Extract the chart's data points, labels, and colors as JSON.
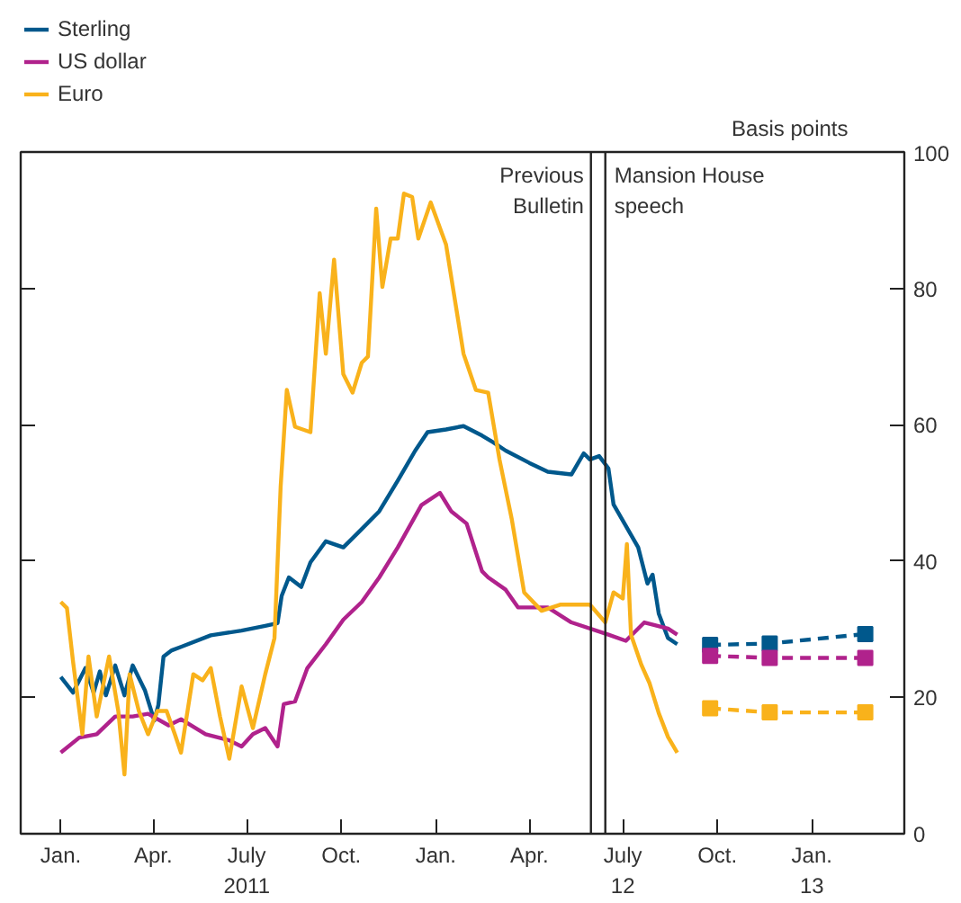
{
  "chart_data": {
    "type": "line",
    "ylabel": "Basis points",
    "xlim": [
      "2010-11-23",
      "2013-04-01"
    ],
    "ylim": [
      0,
      100
    ],
    "yticks": [
      0,
      20,
      40,
      60,
      80,
      100
    ],
    "xticks": [
      {
        "value": "2011-01-01",
        "label": "Jan."
      },
      {
        "value": "2011-04-01",
        "label": "Apr."
      },
      {
        "value": "2011-07-01",
        "label": "July\n2011"
      },
      {
        "value": "2011-10-01",
        "label": "Oct."
      },
      {
        "value": "2012-01-01",
        "label": "Jan."
      },
      {
        "value": "2012-04-01",
        "label": "Apr."
      },
      {
        "value": "2012-07-01",
        "label": "July\n12"
      },
      {
        "value": "2012-10-01",
        "label": "Oct."
      },
      {
        "value": "2013-01-01",
        "label": "Jan.\n13"
      }
    ],
    "grid": false,
    "legend": "top left",
    "marker": "none",
    "line_style": "solid",
    "ref_lines": [
      {
        "axis": "x",
        "value": "2012-05-31",
        "label": "Previous\nBulletin",
        "color": "#222222"
      },
      {
        "axis": "x",
        "value": "2012-06-14",
        "label": "Mansion House\nspeech",
        "color": "#222222"
      }
    ],
    "series": [
      {
        "name": "Sterling",
        "color": "#00588c",
        "x": [
          "2011-01-01",
          "2011-01-13",
          "2011-01-25",
          "2011-02-02",
          "2011-02-08",
          "2011-02-14",
          "2011-02-23",
          "2011-03-04",
          "2011-03-12",
          "2011-03-24",
          "2011-04-02",
          "2011-04-06",
          "2011-04-11",
          "2011-04-19",
          "2011-04-28",
          "2011-05-27",
          "2011-06-26",
          "2011-07-19",
          "2011-07-31",
          "2011-08-04",
          "2011-08-11",
          "2011-08-23",
          "2011-09-01",
          "2011-09-16",
          "2011-10-03",
          "2011-10-21",
          "2011-11-07",
          "2011-11-25",
          "2011-12-12",
          "2011-12-24",
          "2012-01-11",
          "2012-01-28",
          "2012-02-15",
          "2012-02-26",
          "2012-03-09",
          "2012-04-01",
          "2012-04-19",
          "2012-05-12",
          "2012-05-24",
          "2012-05-30",
          "2012-06-08",
          "2012-06-17",
          "2012-06-22",
          "2012-07-16",
          "2012-07-25",
          "2012-07-30",
          "2012-08-05",
          "2012-08-14",
          "2012-08-23"
        ],
        "values": [
          23.0,
          20.7,
          24.3,
          20.7,
          23.8,
          20.3,
          24.7,
          20.3,
          24.7,
          21.0,
          16.6,
          18.9,
          26.0,
          26.9,
          27.4,
          29.1,
          29.8,
          30.5,
          30.9,
          34.9,
          37.6,
          36.2,
          39.8,
          42.9,
          42.0,
          44.7,
          47.3,
          51.8,
          56.2,
          58.9,
          59.3,
          59.8,
          58.4,
          57.4,
          56.2,
          54.4,
          53.1,
          52.7,
          55.8,
          54.9,
          55.4,
          53.6,
          48.3,
          42.0,
          36.7,
          38.0,
          32.3,
          28.7,
          27.8
        ]
      },
      {
        "name": "US dollar",
        "color": "#b0228c",
        "x": [
          "2011-01-01",
          "2011-01-19",
          "2011-02-05",
          "2011-02-23",
          "2011-03-12",
          "2011-03-27",
          "2011-04-16",
          "2011-04-28",
          "2011-05-22",
          "2011-06-14",
          "2011-06-26",
          "2011-07-07",
          "2011-07-19",
          "2011-07-31",
          "2011-08-06",
          "2011-08-17",
          "2011-08-29",
          "2011-09-16",
          "2011-10-03",
          "2011-10-21",
          "2011-11-07",
          "2011-11-25",
          "2011-12-18",
          "2012-01-05",
          "2012-01-16",
          "2012-01-31",
          "2012-02-15",
          "2012-02-21",
          "2012-03-09",
          "2012-03-21",
          "2012-04-19",
          "2012-05-12",
          "2012-06-17",
          "2012-07-04",
          "2012-07-22",
          "2012-08-14",
          "2012-08-23"
        ],
        "values": [
          11.9,
          14.1,
          14.6,
          17.2,
          17.2,
          17.6,
          15.9,
          16.8,
          14.6,
          13.7,
          12.8,
          14.6,
          15.5,
          12.8,
          19.0,
          19.4,
          24.3,
          27.8,
          31.4,
          34.0,
          37.6,
          42.0,
          48.2,
          50.0,
          47.3,
          45.5,
          38.5,
          37.6,
          35.8,
          33.2,
          33.2,
          31.0,
          29.2,
          28.3,
          31.0,
          30.1,
          29.2
        ]
      },
      {
        "name": "Euro",
        "color": "#f9b21b",
        "x": [
          "2011-01-01",
          "2011-01-07",
          "2011-01-13",
          "2011-01-22",
          "2011-01-28",
          "2011-02-05",
          "2011-02-17",
          "2011-02-26",
          "2011-03-04",
          "2011-03-09",
          "2011-03-18",
          "2011-03-27",
          "2011-04-05",
          "2011-04-14",
          "2011-04-22",
          "2011-04-28",
          "2011-05-10",
          "2011-05-19",
          "2011-05-27",
          "2011-06-05",
          "2011-06-14",
          "2011-06-26",
          "2011-07-07",
          "2011-07-19",
          "2011-07-28",
          "2011-08-03",
          "2011-08-09",
          "2011-08-17",
          "2011-09-01",
          "2011-09-10",
          "2011-09-16",
          "2011-09-24",
          "2011-10-03",
          "2011-10-12",
          "2011-10-21",
          "2011-10-27",
          "2011-11-04",
          "2011-11-10",
          "2011-11-18",
          "2011-11-25",
          "2011-12-01",
          "2011-12-09",
          "2011-12-15",
          "2011-12-27",
          "2012-01-11",
          "2012-01-28",
          "2012-02-09",
          "2012-02-21",
          "2012-03-03",
          "2012-03-15",
          "2012-03-27",
          "2012-04-13",
          "2012-05-01",
          "2012-05-30",
          "2012-06-14",
          "2012-06-22",
          "2012-07-01",
          "2012-07-05",
          "2012-07-09",
          "2012-07-19",
          "2012-07-27",
          "2012-08-05",
          "2012-08-14",
          "2012-08-23"
        ],
        "values": [
          34.0,
          33.1,
          25.2,
          14.6,
          26.0,
          17.2,
          26.0,
          18.0,
          8.7,
          23.4,
          18.0,
          14.6,
          18.0,
          18.0,
          14.6,
          11.9,
          23.4,
          22.5,
          24.3,
          17.2,
          11.0,
          21.6,
          15.5,
          23.4,
          28.7,
          50.9,
          65.1,
          59.7,
          58.9,
          79.3,
          70.4,
          84.2,
          67.4,
          64.7,
          69.1,
          70.0,
          91.7,
          80.2,
          87.3,
          87.3,
          93.9,
          93.4,
          87.3,
          92.6,
          86.4,
          70.4,
          65.1,
          64.7,
          54.9,
          46.1,
          35.4,
          32.7,
          33.6,
          33.6,
          31.0,
          35.4,
          34.5,
          42.5,
          29.2,
          24.8,
          22.1,
          17.7,
          14.2,
          11.9
        ]
      },
      {
        "color": "#00588c",
        "line_style": "dashed",
        "marker": "square",
        "x": [
          "2012-09-24",
          "2012-11-21",
          "2013-02-22"
        ],
        "values": [
          27.7,
          27.9,
          29.3
        ]
      },
      {
        "color": "#b0228c",
        "line_style": "dashed",
        "marker": "square",
        "x": [
          "2012-09-24",
          "2012-11-21",
          "2013-02-22"
        ],
        "values": [
          26.1,
          25.8,
          25.8
        ]
      },
      {
        "color": "#f9b21b",
        "line_style": "dashed",
        "marker": "square",
        "x": [
          "2012-09-24",
          "2012-11-21",
          "2013-02-22"
        ],
        "values": [
          18.4,
          17.8,
          17.8
        ]
      }
    ]
  }
}
